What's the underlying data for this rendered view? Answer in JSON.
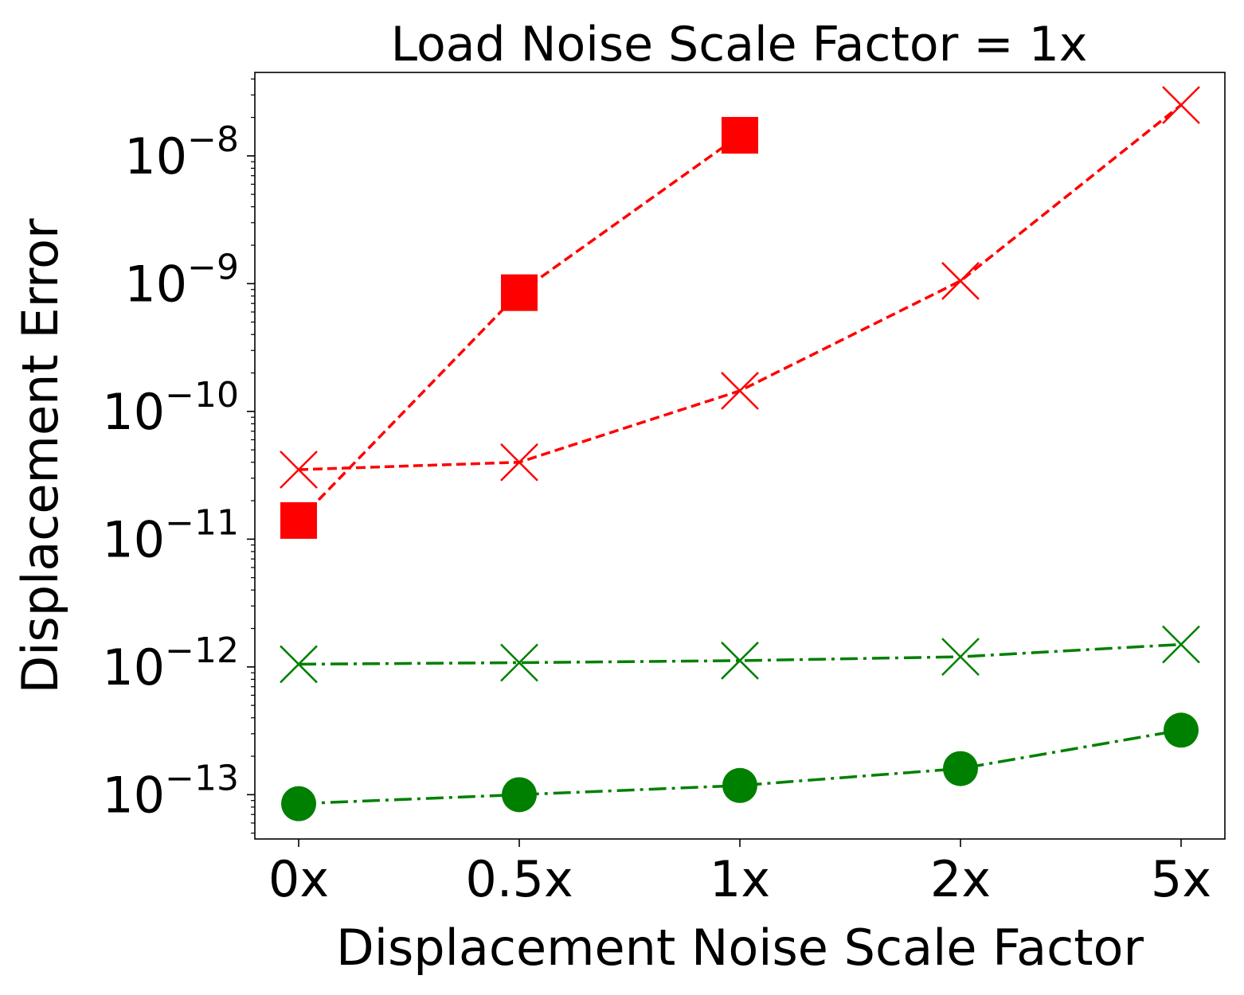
{
  "chart_data": {
    "type": "line",
    "title": "Load Noise Scale Factor = 1x",
    "xlabel": "Displacement Noise Scale Factor",
    "ylabel": "Displacement Error",
    "categories": [
      "0x",
      "0.5x",
      "1x",
      "2x",
      "5x"
    ],
    "yscale": "log",
    "ylim": [
      4.5e-14,
      4.5e-08
    ],
    "yticks": [
      {
        "value": 1e-13,
        "base": "10",
        "exp": "−13"
      },
      {
        "value": 1e-12,
        "base": "10",
        "exp": "−12"
      },
      {
        "value": 1e-11,
        "base": "10",
        "exp": "−11"
      },
      {
        "value": 1e-10,
        "base": "10",
        "exp": "−10"
      },
      {
        "value": 1e-09,
        "base": "10",
        "exp": "−9"
      },
      {
        "value": 1e-08,
        "base": "10",
        "exp": "−8"
      }
    ],
    "series": [
      {
        "name": "red-square",
        "color": "#ff0000",
        "linestyle": "dashed",
        "marker": "square",
        "values": [
          1.4e-11,
          8.5e-10,
          1.45e-08,
          null,
          null
        ]
      },
      {
        "name": "red-x",
        "color": "#ff0000",
        "linestyle": "dashed",
        "marker": "x",
        "values": [
          3.5e-11,
          4e-11,
          1.45e-10,
          1.05e-09,
          2.5e-08
        ]
      },
      {
        "name": "green-x",
        "color": "#008000",
        "linestyle": "dashdot",
        "marker": "x",
        "values": [
          1.05e-12,
          1.08e-12,
          1.12e-12,
          1.2e-12,
          1.5e-12
        ]
      },
      {
        "name": "green-circle",
        "color": "#008000",
        "linestyle": "dashdot",
        "marker": "circle",
        "values": [
          8.5e-14,
          1e-13,
          1.18e-13,
          1.6e-13,
          3.2e-13
        ]
      }
    ]
  }
}
